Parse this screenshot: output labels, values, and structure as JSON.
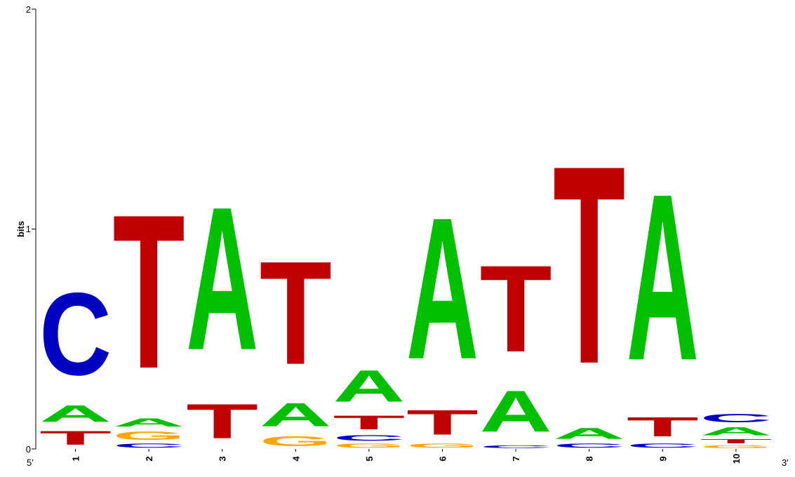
{
  "chart_data": {
    "type": "sequence-logo",
    "ylabel": "bits",
    "ylim": [
      0,
      2
    ],
    "yticks": [
      "0",
      "1",
      "2"
    ],
    "x_start_label": "5′",
    "x_end_label": "3′",
    "colors": {
      "A": "#00c000",
      "C": "#0000c0",
      "G": "#ffa500",
      "T": "#c00000"
    },
    "positions": [
      {
        "label": "1",
        "stack": [
          {
            "base": "T",
            "bits": 0.1
          },
          {
            "base": "A",
            "bits": 0.12
          },
          {
            "base": "C",
            "bits": 0.6
          }
        ]
      },
      {
        "label": "2",
        "stack": [
          {
            "base": "C",
            "bits": 0.03
          },
          {
            "base": "G",
            "bits": 0.06
          },
          {
            "base": "A",
            "bits": 0.06
          },
          {
            "base": "T",
            "bits": 1.12
          }
        ]
      },
      {
        "label": "3",
        "stack": [
          {
            "base": "T",
            "bits": 0.25
          },
          {
            "base": "A",
            "bits": 1.04
          }
        ]
      },
      {
        "label": "4",
        "stack": [
          {
            "base": "G",
            "bits": 0.07
          },
          {
            "base": "A",
            "bits": 0.17
          },
          {
            "base": "T",
            "bits": 0.75
          }
        ]
      },
      {
        "label": "5",
        "stack": [
          {
            "base": "G",
            "bits": 0.03
          },
          {
            "base": "C",
            "bits": 0.04
          },
          {
            "base": "T",
            "bits": 0.1
          },
          {
            "base": "A",
            "bits": 0.23
          }
        ]
      },
      {
        "label": "6",
        "stack": [
          {
            "base": "G",
            "bits": 0.03
          },
          {
            "base": "T",
            "bits": 0.18
          },
          {
            "base": "A",
            "bits": 1.03
          }
        ]
      },
      {
        "label": "7",
        "stack": [
          {
            "base": "C",
            "bits": 0.02
          },
          {
            "base": "A",
            "bits": 0.3
          },
          {
            "base": "T",
            "bits": 0.63
          }
        ]
      },
      {
        "label": "8",
        "stack": [
          {
            "base": "C",
            "bits": 0.03
          },
          {
            "base": "A",
            "bits": 0.08
          },
          {
            "base": "T",
            "bits": 1.44
          }
        ]
      },
      {
        "label": "9",
        "stack": [
          {
            "base": "C",
            "bits": 0.03
          },
          {
            "base": "T",
            "bits": 0.14
          },
          {
            "base": "A",
            "bits": 1.21
          }
        ]
      },
      {
        "label": "10",
        "stack": [
          {
            "base": "G",
            "bits": 0.02
          },
          {
            "base": "T",
            "bits": 0.03
          },
          {
            "base": "A",
            "bits": 0.06
          },
          {
            "base": "C",
            "bits": 0.06
          }
        ]
      }
    ]
  }
}
